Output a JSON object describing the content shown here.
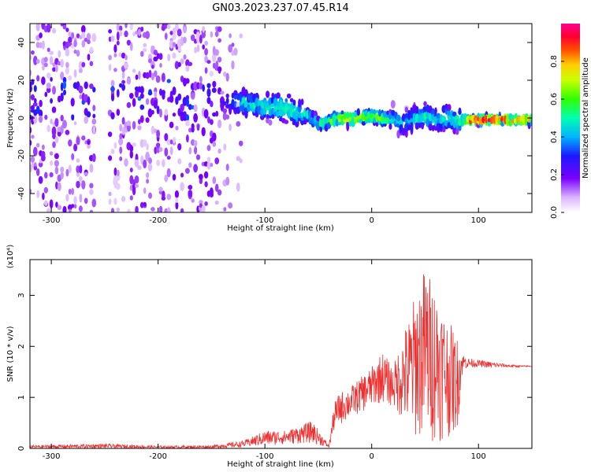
{
  "title": "GN03.2023.237.07.45.R14",
  "chart_data": [
    {
      "type": "heatmap",
      "xlabel": "Height of straight line (km)",
      "ylabel": "Frequency (Hz)",
      "xlim": [
        -320,
        150
      ],
      "ylim": [
        -50,
        50
      ],
      "xticks": [
        -300,
        -200,
        -100,
        0,
        100
      ],
      "yticks": [
        -40,
        -20,
        0,
        20,
        40
      ],
      "colorbar": {
        "label": "Normalized spectral amplitude",
        "range": [
          0,
          1
        ],
        "ticks": [
          "0.0",
          "0.2",
          "0.4",
          "0.6",
          "0.8"
        ]
      },
      "ridge": {
        "x": [
          -310,
          -300,
          -280,
          -260,
          -240,
          -200,
          -160,
          -140,
          -120,
          -100,
          -80,
          -70,
          -60,
          -50,
          -40,
          -30,
          -20,
          -10,
          0,
          10,
          20,
          30,
          40,
          50,
          60,
          70,
          80,
          90,
          100,
          110,
          120,
          130,
          140,
          150
        ],
        "freq": [
          10,
          12,
          9,
          11,
          8,
          10,
          9,
          9,
          8,
          6,
          5,
          3,
          2,
          -3,
          -2,
          0,
          -1,
          0,
          1,
          0,
          -1,
          -2,
          0,
          1,
          -1,
          0,
          -1,
          -1,
          -1,
          -1,
          -1,
          -1,
          -1,
          -1
        ],
        "amplitude": [
          0.15,
          0.15,
          0.15,
          0.15,
          0.15,
          0.15,
          0.15,
          0.25,
          0.45,
          0.5,
          0.55,
          0.5,
          0.45,
          0.5,
          0.6,
          0.7,
          0.75,
          0.7,
          0.65,
          0.7,
          0.5,
          0.4,
          0.45,
          0.5,
          0.45,
          0.5,
          0.5,
          0.9,
          0.95,
          0.95,
          0.9,
          0.88,
          0.85,
          0.8
        ]
      }
    },
    {
      "type": "line",
      "xlabel": "Height of straight line (km)",
      "ylabel": "SNR (10 * v/v)",
      "scale_label": "(x10⁴)",
      "xlim": [
        -320,
        150
      ],
      "ylim": [
        0,
        3.7
      ],
      "xticks": [
        -300,
        -200,
        -100,
        0,
        100
      ],
      "yticks": [
        0,
        1,
        2,
        3
      ],
      "color": "#ee3030",
      "envelope": {
        "x": [
          -320,
          -250,
          -200,
          -150,
          -120,
          -100,
          -80,
          -60,
          -56,
          -40,
          -35,
          -30,
          -20,
          -10,
          0,
          10,
          20,
          30,
          35,
          40,
          50,
          60,
          70,
          80,
          85,
          90,
          100,
          110,
          120,
          130,
          140,
          150
        ],
        "upper": [
          0.06,
          0.09,
          0.05,
          0.06,
          0.15,
          0.35,
          0.35,
          0.5,
          0.55,
          0.06,
          0.9,
          1.1,
          1.2,
          1.4,
          1.6,
          1.9,
          1.6,
          2.3,
          2.6,
          3.0,
          3.6,
          3.2,
          2.6,
          2.2,
          1.9,
          1.8,
          1.75,
          1.72,
          1.68,
          1.65,
          1.63,
          1.62
        ],
        "lower": [
          0,
          0,
          0,
          0,
          0.02,
          0.05,
          0.08,
          0.1,
          0.1,
          0.01,
          0.35,
          0.45,
          0.6,
          0.7,
          0.8,
          0.9,
          0.8,
          0.5,
          0.2,
          0.2,
          0.1,
          0.1,
          0.2,
          0.3,
          1.5,
          1.55,
          1.58,
          1.56,
          1.58,
          1.58,
          1.59,
          1.6
        ]
      }
    }
  ]
}
